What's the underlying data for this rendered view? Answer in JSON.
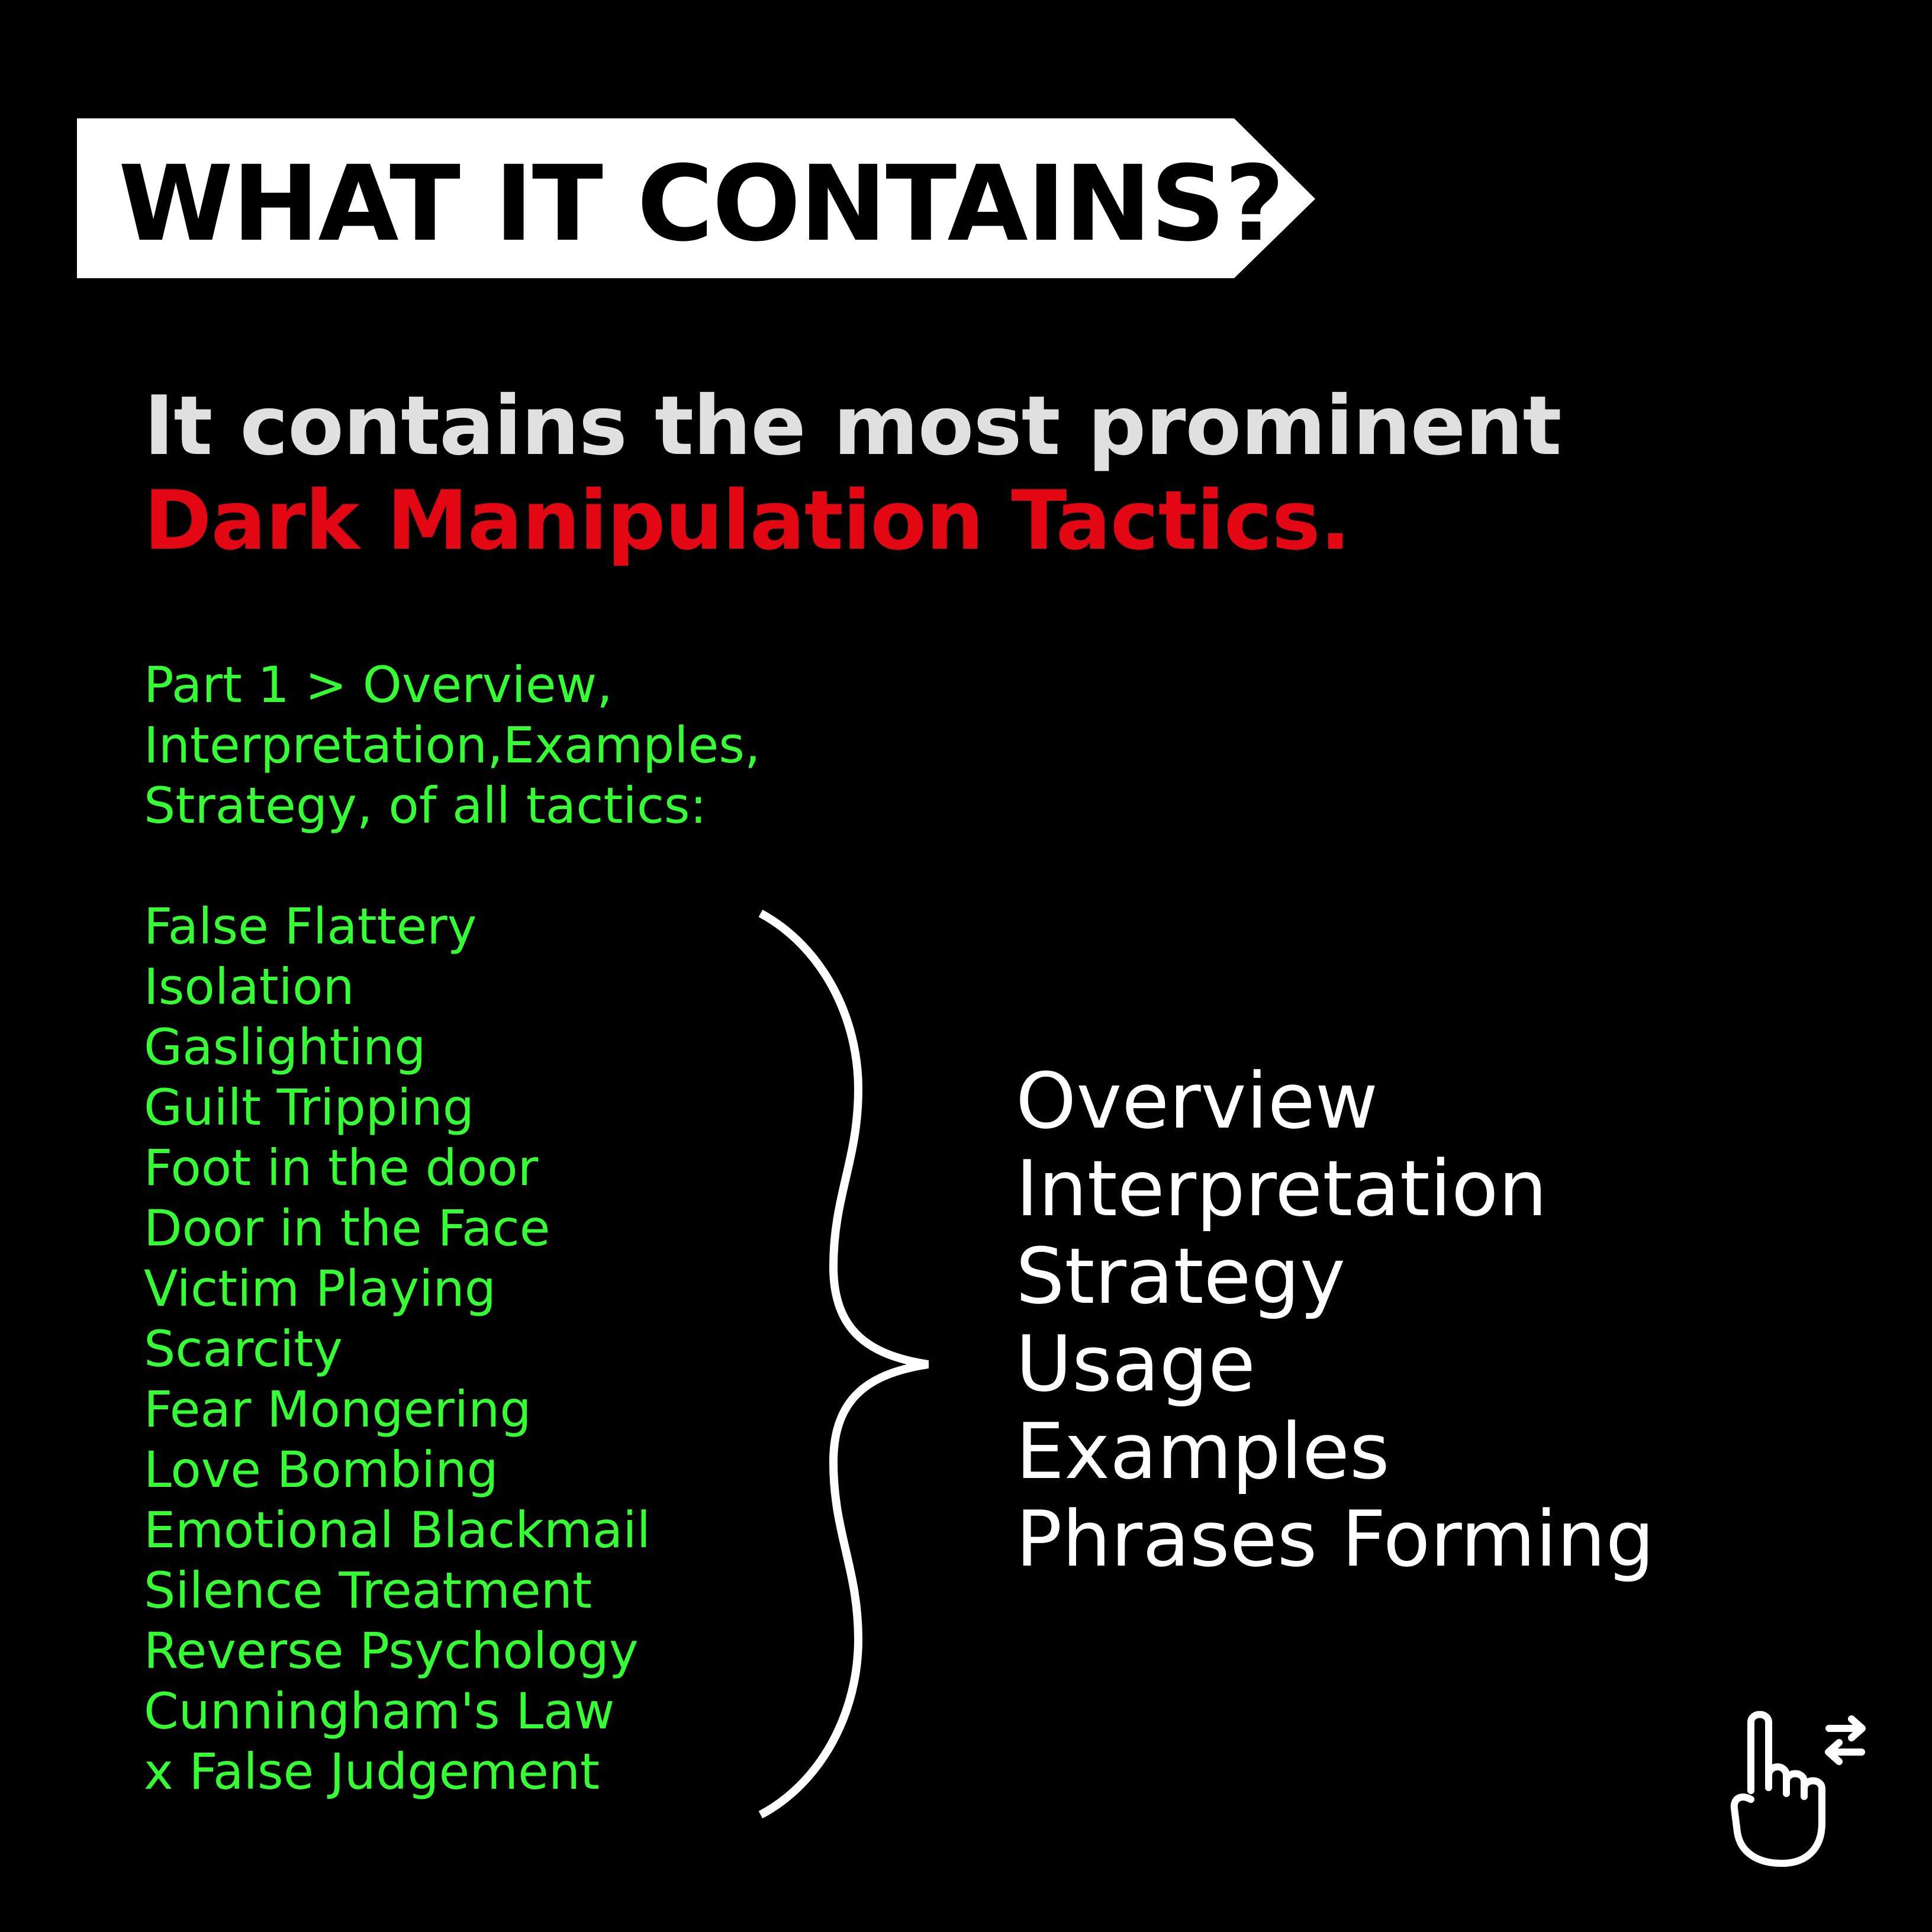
{
  "banner": {
    "title": "WHAT IT CONTAINS?"
  },
  "headline": {
    "line1": "It contains the most prominent",
    "line2": "Dark Manipulation Tactics."
  },
  "intro": {
    "lines": [
      "Part 1 > Overview,",
      "Interpretation,Examples,",
      "Strategy, of all tactics:"
    ]
  },
  "tactics": [
    "False Flattery",
    "Isolation",
    "Gaslighting",
    "Guilt Tripping",
    "Foot in the door",
    "Door in the Face",
    "Victim Playing",
    "Scarcity",
    "Fear Mongering",
    "Love Bombing",
    "Emotional Blackmail",
    "Silence Treatment",
    "Reverse Psychology",
    "Cunningham's Law",
    "x False Judgement"
  ],
  "aspects": [
    "Overview",
    "Interpretation",
    "Strategy",
    "Usage",
    "Examples",
    "Phrases Forming"
  ],
  "icons": {
    "brace": "right-curly-brace-icon",
    "swipe": "swipe-hand-icon"
  },
  "colors": {
    "background": "#000000",
    "banner": "#ffffff",
    "headline": "#e0e0e0",
    "accent_red": "#e30613",
    "list_green": "#33ff33",
    "aspects": "#ffffff"
  }
}
